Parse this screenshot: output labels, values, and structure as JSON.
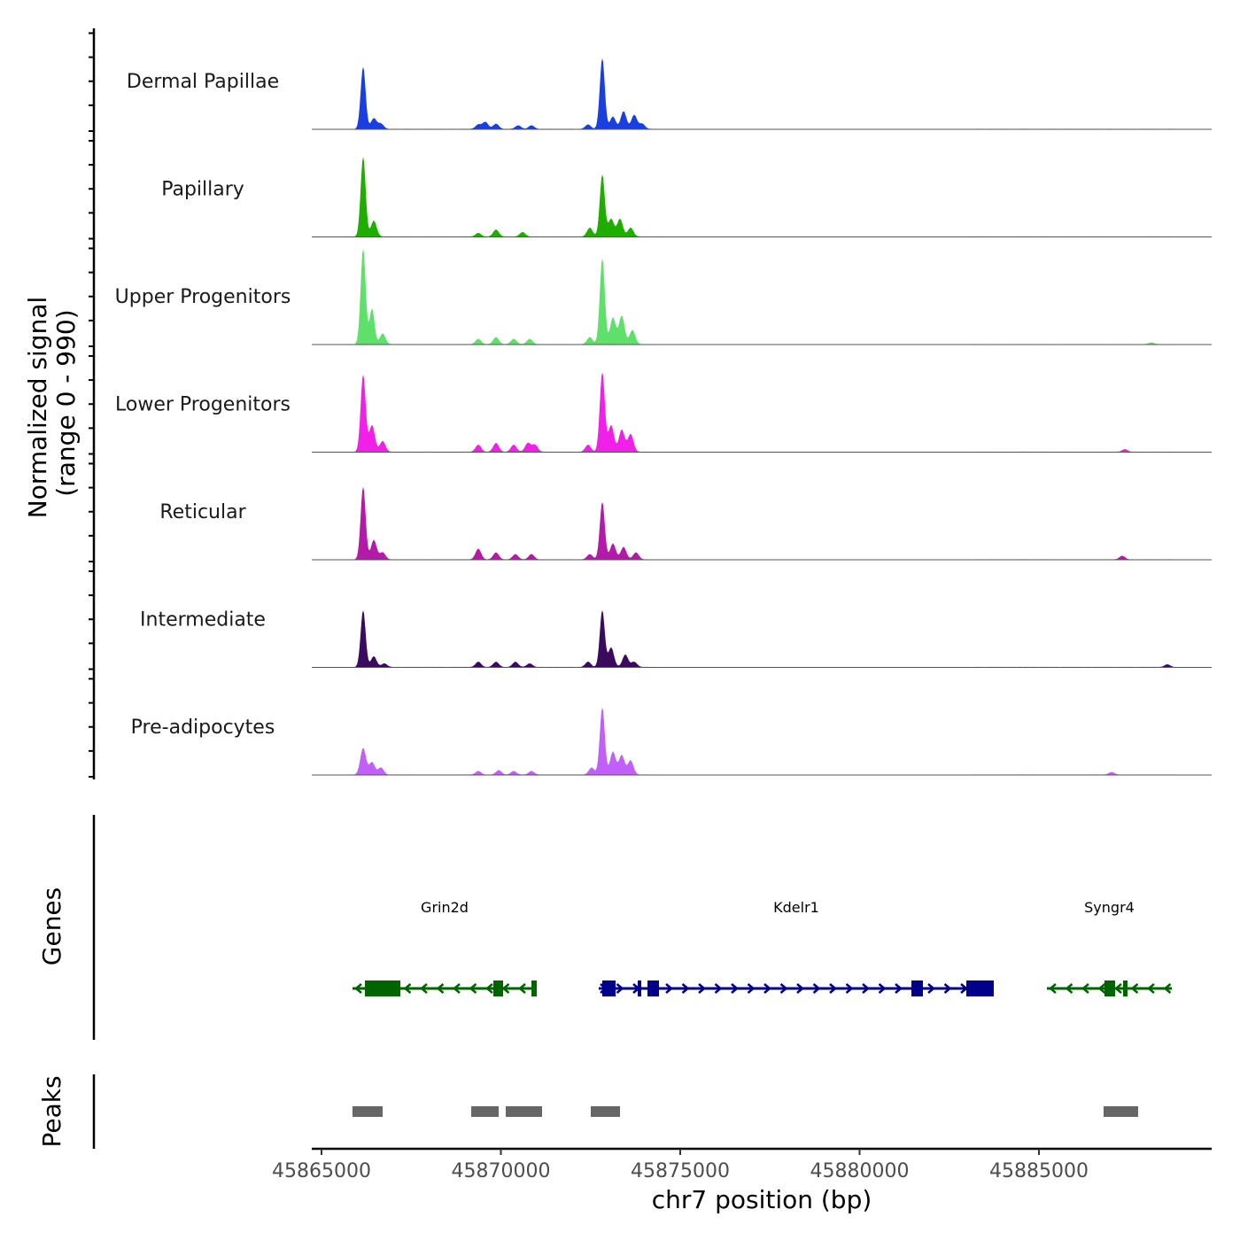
{
  "chart_data": {
    "type": "area",
    "title": "",
    "ylabel": "Normalized signal",
    "ylabel2": "(range 0 - 990)",
    "ylim": [
      0,
      990
    ],
    "xlabel": "chr7 position (bp)",
    "xlim": [
      45864728,
      45889815
    ],
    "xticks": [
      45865000,
      45870000,
      45875000,
      45880000,
      45885000
    ],
    "xtick_labels": [
      "45865000",
      "45870000",
      "45875000",
      "45880000",
      "45885000"
    ],
    "tracks": [
      {
        "name": "Dermal Papillae",
        "color": "#1a3fe0",
        "peaks": [
          [
            45866160,
            588
          ],
          [
            45866457,
            100
          ],
          [
            45866654,
            50
          ],
          [
            45869370,
            42
          ],
          [
            45869568,
            67
          ],
          [
            45869864,
            50
          ],
          [
            45870481,
            34
          ],
          [
            45870852,
            34
          ],
          [
            45872432,
            42
          ],
          [
            45872827,
            672
          ],
          [
            45873123,
            118
          ],
          [
            45873420,
            168
          ],
          [
            45873716,
            134
          ],
          [
            45873938,
            50
          ]
        ]
      },
      {
        "name": "Papillary",
        "color": "#1fad00",
        "peaks": [
          [
            45866160,
            756
          ],
          [
            45866457,
            151
          ],
          [
            45869370,
            34
          ],
          [
            45869864,
            67
          ],
          [
            45870605,
            42
          ],
          [
            45872481,
            84
          ],
          [
            45872827,
            588
          ],
          [
            45873074,
            168
          ],
          [
            45873321,
            168
          ],
          [
            45873617,
            84
          ]
        ]
      },
      {
        "name": "Upper Progenitors",
        "color": "#5ee06a",
        "peaks": [
          [
            45866160,
            907
          ],
          [
            45866407,
            336
          ],
          [
            45866704,
            101
          ],
          [
            45869370,
            50
          ],
          [
            45869864,
            67
          ],
          [
            45870358,
            50
          ],
          [
            45870802,
            50
          ],
          [
            45872481,
            67
          ],
          [
            45872827,
            815
          ],
          [
            45873123,
            252
          ],
          [
            45873370,
            269
          ],
          [
            45873667,
            134
          ],
          [
            45888136,
            17
          ]
        ]
      },
      {
        "name": "Lower Progenitors",
        "color": "#f020e8",
        "peaks": [
          [
            45866160,
            731
          ],
          [
            45866407,
            252
          ],
          [
            45866704,
            101
          ],
          [
            45869370,
            67
          ],
          [
            45869864,
            84
          ],
          [
            45870358,
            67
          ],
          [
            45870753,
            84
          ],
          [
            45870951,
            67
          ],
          [
            45872432,
            67
          ],
          [
            45872827,
            756
          ],
          [
            45873074,
            252
          ],
          [
            45873370,
            210
          ],
          [
            45873617,
            168
          ],
          [
            45887395,
            25
          ]
        ]
      },
      {
        "name": "Reticular",
        "color": "#b41aa8",
        "peaks": [
          [
            45866160,
            689
          ],
          [
            45866457,
            185
          ],
          [
            45866704,
            67
          ],
          [
            45869370,
            101
          ],
          [
            45869864,
            67
          ],
          [
            45870407,
            50
          ],
          [
            45870852,
            50
          ],
          [
            45872481,
            50
          ],
          [
            45872827,
            546
          ],
          [
            45873123,
            151
          ],
          [
            45873420,
            118
          ],
          [
            45873765,
            67
          ],
          [
            45887321,
            34
          ]
        ]
      },
      {
        "name": "Intermediate",
        "color": "#3a0a5e",
        "peaks": [
          [
            45866160,
            538
          ],
          [
            45866457,
            101
          ],
          [
            45866753,
            34
          ],
          [
            45869370,
            50
          ],
          [
            45869864,
            50
          ],
          [
            45870407,
            50
          ],
          [
            45870802,
            34
          ],
          [
            45872432,
            50
          ],
          [
            45872827,
            538
          ],
          [
            45873074,
            185
          ],
          [
            45873469,
            118
          ],
          [
            45873716,
            50
          ],
          [
            45888580,
            25
          ]
        ]
      },
      {
        "name": "Pre-adipocytes",
        "color": "#c060f8",
        "peaks": [
          [
            45866160,
            252
          ],
          [
            45866407,
            118
          ],
          [
            45866654,
            67
          ],
          [
            45869370,
            34
          ],
          [
            45869938,
            42
          ],
          [
            45870358,
            34
          ],
          [
            45870852,
            34
          ],
          [
            45872531,
            67
          ],
          [
            45872827,
            638
          ],
          [
            45873123,
            218
          ],
          [
            45873370,
            185
          ],
          [
            45873617,
            134
          ],
          [
            45887025,
            25
          ]
        ]
      }
    ],
    "genes_label": "Genes",
    "genes": [
      {
        "name": "Grin2d",
        "strand": "-",
        "start": 45865864,
        "end": 45871000,
        "color": "#006400",
        "exons": [
          [
            45866210,
            45867198
          ],
          [
            45869790,
            45870062
          ],
          [
            45870852,
            45871000
          ]
        ]
      },
      {
        "name": "Kdelr1",
        "strand": "+",
        "start": 45872728,
        "end": 45883741,
        "color": "#00008b",
        "exons": [
          [
            45872827,
            45873198
          ],
          [
            45873815,
            45873889
          ],
          [
            45874086,
            45874407
          ],
          [
            45881444,
            45881765
          ],
          [
            45882975,
            45883741
          ]
        ]
      },
      {
        "name": "Syngr4",
        "strand": "-",
        "start": 45885222,
        "end": 45888704,
        "color": "#006400",
        "exons": [
          [
            45886827,
            45887123
          ],
          [
            45887346,
            45887469
          ]
        ]
      }
    ],
    "peaks_label": "Peaks",
    "peak_color": "#666666",
    "peak_regions": [
      [
        45865864,
        45866704
      ],
      [
        45869173,
        45869938
      ],
      [
        45870136,
        45871148
      ],
      [
        45872506,
        45873321
      ],
      [
        45886802,
        45887765
      ]
    ]
  }
}
